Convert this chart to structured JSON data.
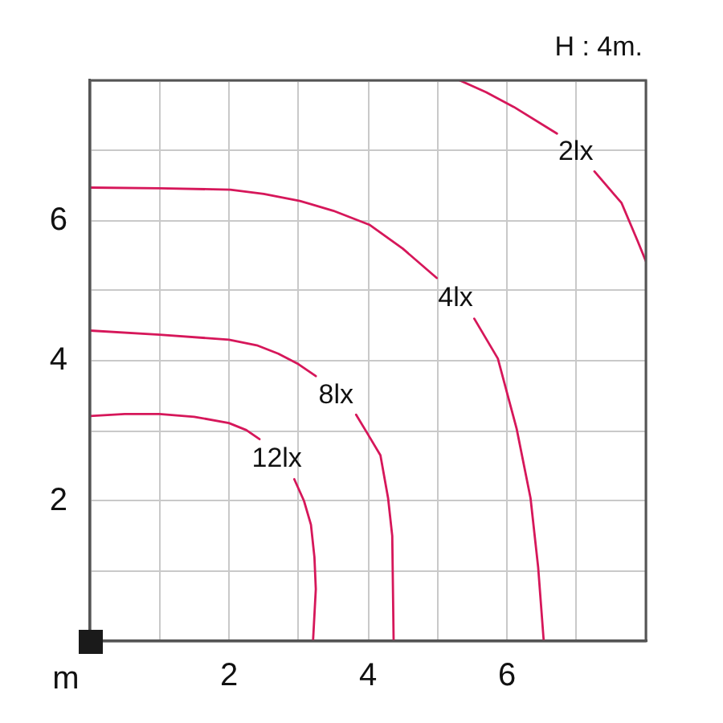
{
  "chart_data": {
    "type": "line",
    "xlabel": "m",
    "annotations": [
      "H : 4m."
    ],
    "xlim": [
      0,
      8
    ],
    "ylim": [
      0,
      8
    ],
    "xticks": [
      {
        "value": 0,
        "label": null
      },
      {
        "value": 1,
        "label": null
      },
      2,
      {
        "value": 3,
        "label": null
      },
      4,
      {
        "value": 5,
        "label": null
      },
      6,
      {
        "value": 7,
        "label": null
      },
      {
        "value": 8,
        "label": null
      }
    ],
    "yticks": [
      {
        "value": 0,
        "label": null
      },
      {
        "value": 1,
        "label": null
      },
      2,
      {
        "value": 3,
        "label": null
      },
      4,
      {
        "value": 5,
        "label": null
      },
      6,
      {
        "value": 7,
        "label": null
      },
      {
        "value": 8,
        "label": null
      }
    ],
    "grid": true,
    "legend": false,
    "marker": "none",
    "line_style": "solid",
    "series": [
      {
        "name": "12lx",
        "color": "#d6175a",
        "x": [
          0,
          0.5,
          1.0,
          1.5,
          2.0,
          2.25,
          2.44,
          2.69,
          2.94,
          3.08,
          3.18,
          3.23,
          3.25,
          3.21
        ],
        "values": [
          3.21,
          3.24,
          3.24,
          3.2,
          3.11,
          3.01,
          2.88,
          null,
          2.31,
          2.0,
          1.66,
          1.2,
          0.74,
          0
        ]
      },
      {
        "name": "8lx",
        "color": "#d6175a",
        "x": [
          0,
          1.0,
          2.0,
          2.4,
          2.71,
          3.0,
          3.25,
          3.54,
          3.83,
          4.0,
          4.18,
          4.29,
          4.35,
          4.37
        ],
        "values": [
          4.43,
          4.37,
          4.3,
          4.22,
          4.1,
          3.95,
          3.78,
          null,
          3.23,
          2.95,
          2.65,
          2.04,
          1.5,
          0
        ]
      },
      {
        "name": "4lx",
        "color": "#d6175a",
        "x": [
          0,
          1.0,
          2.02,
          2.5,
          3.02,
          3.5,
          4.02,
          4.5,
          4.99,
          5.26,
          5.53,
          5.87,
          6.14,
          6.34,
          6.45,
          6.53
        ],
        "values": [
          6.47,
          6.46,
          6.44,
          6.38,
          6.28,
          6.14,
          5.94,
          5.6,
          5.18,
          null,
          4.6,
          4.03,
          3.03,
          2.04,
          1.05,
          0
        ]
      },
      {
        "name": "2lx",
        "color": "#d6175a",
        "x": [
          5.32,
          5.7,
          6.1,
          6.72,
          6.99,
          7.26,
          7.65,
          7.88,
          8.0
        ],
        "values": [
          8.0,
          7.83,
          7.62,
          7.24,
          null,
          6.7,
          6.25,
          5.71,
          5.42
        ]
      }
    ]
  }
}
